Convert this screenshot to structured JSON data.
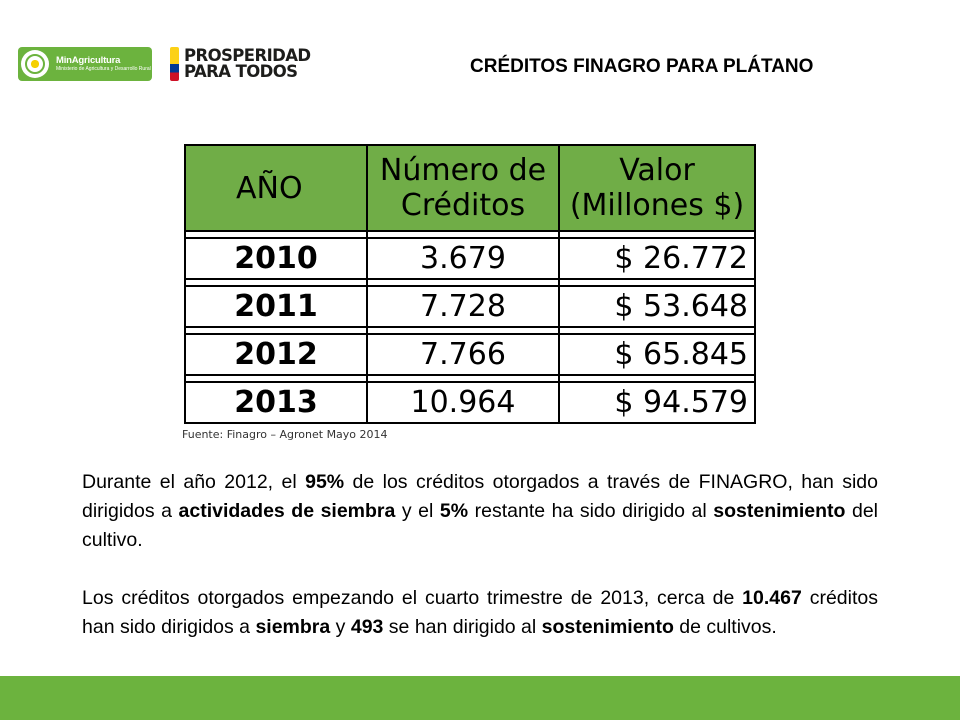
{
  "header": {
    "ministry_logo_title": "MinAgricultura",
    "ministry_logo_sub": "Ministerio de Agricultura y Desarrollo Rural",
    "prosperidad_line1": "PROSPERIDAD",
    "prosperidad_line2": "PARA TODOS",
    "title": "CRÉDITOS FINAGRO PARA PLÁTANO"
  },
  "table": {
    "headers": {
      "year": "AÑO",
      "credits_line1": "Número de",
      "credits_line2": "Créditos",
      "value_line1": "Valor",
      "value_line2": "(Millones $)"
    },
    "rows": [
      {
        "year": "2010",
        "credits": "3.679",
        "value": "$ 26.772"
      },
      {
        "year": "2011",
        "credits": "7.728",
        "value": "$ 53.648"
      },
      {
        "year": "2012",
        "credits": "7.766",
        "value": "$ 65.845"
      },
      {
        "year": "2013",
        "credits": "10.964",
        "value": "$ 94.579"
      }
    ]
  },
  "source": "Fuente: Finagro – Agronet  Mayo 2014",
  "paragraph1": {
    "t1": "Durante el año 2012, el ",
    "b1": "95%",
    "t2": " de los créditos otorgados a través de FINAGRO, han sido dirigidos a ",
    "b2": "actividades de siembra",
    "t3": " y el ",
    "b3": "5%",
    "t4": " restante ha sido dirigido al ",
    "b4": "sostenimiento",
    "t5": " del cultivo."
  },
  "paragraph2": {
    "t1": "Los créditos otorgados empezando el cuarto trimestre de 2013, cerca de ",
    "b1": "10.467",
    "t2": " créditos han sido dirigidos a ",
    "b2": "siembra",
    "t3": " y ",
    "b3": "493",
    "t4": " se han dirigido al ",
    "b4": "sostenimiento",
    "t5": " de cultivos."
  },
  "colors": {
    "brand_green": "#6cb33e",
    "table_header_green": "#70ad47"
  }
}
